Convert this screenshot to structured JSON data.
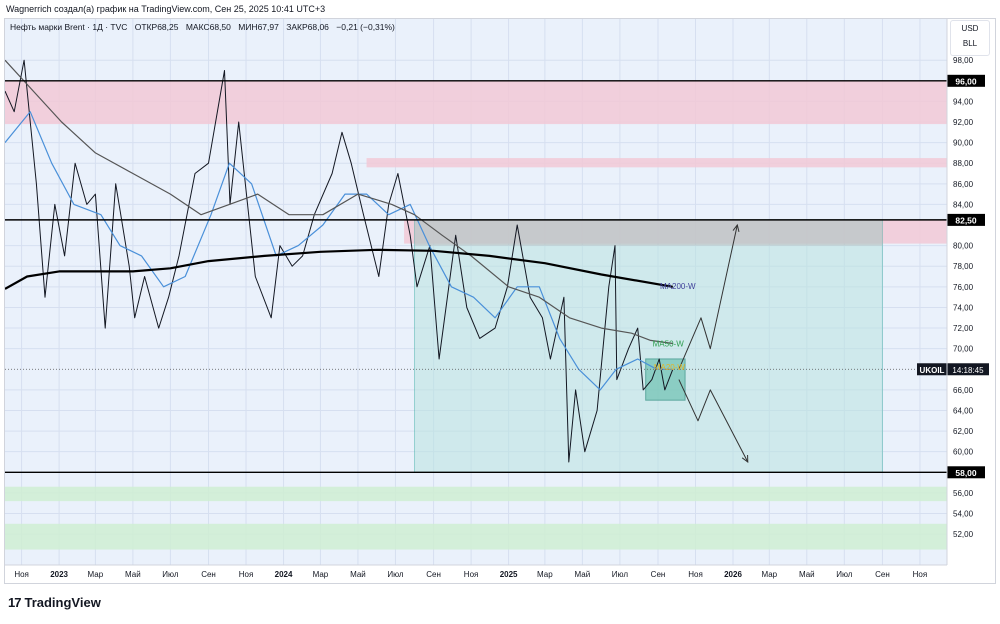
{
  "header": {
    "caption": "Wagnerrich создал(а) график на TradingView.com, Сен 25, 2025 10:41 UTC+3"
  },
  "legend": {
    "symbol": "Нефть марки Brent · 1Д · TVC",
    "open": "ОТКР68,25",
    "high": "МАКС68,50",
    "low": "МИН67,97",
    "close": "ЗАКР68,06",
    "change": "−0,21 (−0,31%)"
  },
  "units": {
    "currency": "USD",
    "unit": "BLL"
  },
  "footer": {
    "logo_text": "TradingView",
    "logo_mark": "17"
  },
  "colors": {
    "background": "#eaf1fb",
    "grid": "#d6dff0",
    "price": "#131722",
    "ma_short": "#4a90d9",
    "ma50": "#555555",
    "ma200": "#000000",
    "red_zone": "#f2c9d6",
    "green_zone": "#cfeed2",
    "teal_box": "#b9e3e0",
    "teal_border": "#4db6ac",
    "label_ma200": "#3f3f9a",
    "label_ma50": "#2e9e4f",
    "label_ma20": "#e6b422"
  },
  "chart_data": {
    "type": "line",
    "title": "",
    "xlabel": "",
    "ylabel": "",
    "grid": true,
    "ylim": [
      49,
      102
    ],
    "x_range": [
      "2022-10-05",
      "2026-12-15"
    ],
    "x_ticks": [
      {
        "date": "2022-11-01",
        "label": "Ноя",
        "bold": false
      },
      {
        "date": "2023-01-01",
        "label": "2023",
        "bold": true
      },
      {
        "date": "2023-03-01",
        "label": "Мар",
        "bold": false
      },
      {
        "date": "2023-05-01",
        "label": "Май",
        "bold": false
      },
      {
        "date": "2023-07-01",
        "label": "Июл",
        "bold": false
      },
      {
        "date": "2023-09-01",
        "label": "Сен",
        "bold": false
      },
      {
        "date": "2023-11-01",
        "label": "Ноя",
        "bold": false
      },
      {
        "date": "2024-01-01",
        "label": "2024",
        "bold": true
      },
      {
        "date": "2024-03-01",
        "label": "Мар",
        "bold": false
      },
      {
        "date": "2024-05-01",
        "label": "Май",
        "bold": false
      },
      {
        "date": "2024-07-01",
        "label": "Июл",
        "bold": false
      },
      {
        "date": "2024-09-01",
        "label": "Сен",
        "bold": false
      },
      {
        "date": "2024-11-01",
        "label": "Ноя",
        "bold": false
      },
      {
        "date": "2025-01-01",
        "label": "2025",
        "bold": true
      },
      {
        "date": "2025-03-01",
        "label": "Мар",
        "bold": false
      },
      {
        "date": "2025-05-01",
        "label": "Май",
        "bold": false
      },
      {
        "date": "2025-07-01",
        "label": "Июл",
        "bold": false
      },
      {
        "date": "2025-09-01",
        "label": "Сен",
        "bold": false
      },
      {
        "date": "2025-11-01",
        "label": "Ноя",
        "bold": false
      },
      {
        "date": "2026-01-01",
        "label": "2026",
        "bold": true
      },
      {
        "date": "2026-03-01",
        "label": "Мар",
        "bold": false
      },
      {
        "date": "2026-05-01",
        "label": "Май",
        "bold": false
      },
      {
        "date": "2026-07-01",
        "label": "Июл",
        "bold": false
      },
      {
        "date": "2026-09-01",
        "label": "Сен",
        "bold": false
      },
      {
        "date": "2026-11-01",
        "label": "Ноя",
        "bold": false
      }
    ],
    "y_ticks": [
      "98,00",
      "94,00",
      "92,00",
      "90,00",
      "88,00",
      "86,00",
      "84,00",
      "80,00",
      "78,00",
      "76,00",
      "74,00",
      "72,00",
      "70,00",
      "66,00",
      "64,00",
      "62,00",
      "60,00",
      "56,00",
      "54,00",
      "52,00"
    ],
    "y_tick_values": [
      98,
      94,
      92,
      90,
      88,
      86,
      84,
      80,
      78,
      76,
      74,
      72,
      70,
      66,
      64,
      62,
      60,
      56,
      54,
      52
    ],
    "levels": [
      {
        "value": 96,
        "label": "96,00"
      },
      {
        "value": 82.5,
        "label": "82,50"
      },
      {
        "value": 58,
        "label": "58,00"
      }
    ],
    "current": {
      "value": 68,
      "symbol": "UKOIL",
      "time": "14:18:45"
    },
    "zones": [
      {
        "kind": "red",
        "x0": "2022-10-05",
        "x1": "2026-12-15",
        "y0": 91.8,
        "y1": 96
      },
      {
        "kind": "red",
        "x0": "2024-05-15",
        "x1": "2026-12-15",
        "y0": 87.6,
        "y1": 88.5
      },
      {
        "kind": "red",
        "x0": "2024-07-15",
        "x1": "2026-12-15",
        "y0": 80.2,
        "y1": 82.5
      },
      {
        "kind": "green",
        "x0": "2022-10-05",
        "x1": "2026-12-15",
        "y0": 55.2,
        "y1": 56.6
      },
      {
        "kind": "green",
        "x0": "2022-10-05",
        "x1": "2026-12-15",
        "y0": 50.5,
        "y1": 53
      }
    ],
    "teal_box": {
      "x0": "2024-08-01",
      "x1": "2026-09-01",
      "y0": 58,
      "y1": 82.5
    },
    "gray_box": {
      "x0": "2024-08-01",
      "x1": "2026-09-01",
      "y0": 80,
      "y1": 82.5
    },
    "small_box": {
      "x0": "2025-08-12",
      "x1": "2025-10-15",
      "y0": 65,
      "y1": 69
    },
    "series": [
      {
        "role": "price",
        "points": [
          [
            "2022-10-05",
            95
          ],
          [
            "2022-10-20",
            93
          ],
          [
            "2022-11-05",
            98
          ],
          [
            "2022-11-25",
            86
          ],
          [
            "2022-12-09",
            75
          ],
          [
            "2022-12-25",
            84
          ],
          [
            "2023-01-10",
            79
          ],
          [
            "2023-01-27",
            88
          ],
          [
            "2023-02-15",
            84
          ],
          [
            "2023-03-01",
            85
          ],
          [
            "2023-03-17",
            72
          ],
          [
            "2023-04-03",
            86
          ],
          [
            "2023-04-25",
            78
          ],
          [
            "2023-05-04",
            73
          ],
          [
            "2023-05-20",
            77
          ],
          [
            "2023-06-12",
            72
          ],
          [
            "2023-06-28",
            75
          ],
          [
            "2023-07-15",
            79
          ],
          [
            "2023-08-10",
            87
          ],
          [
            "2023-09-01",
            88
          ],
          [
            "2023-09-27",
            97
          ],
          [
            "2023-10-06",
            84
          ],
          [
            "2023-10-20",
            92
          ],
          [
            "2023-11-16",
            77
          ],
          [
            "2023-12-12",
            73
          ],
          [
            "2023-12-26",
            80
          ],
          [
            "2024-01-15",
            78
          ],
          [
            "2024-02-01",
            79
          ],
          [
            "2024-02-20",
            83
          ],
          [
            "2024-03-20",
            87
          ],
          [
            "2024-04-05",
            91
          ],
          [
            "2024-04-20",
            88
          ],
          [
            "2024-05-10",
            83
          ],
          [
            "2024-06-04",
            77
          ],
          [
            "2024-06-20",
            84
          ],
          [
            "2024-07-05",
            87
          ],
          [
            "2024-07-25",
            81
          ],
          [
            "2024-08-05",
            76
          ],
          [
            "2024-08-26",
            80
          ],
          [
            "2024-09-10",
            69
          ],
          [
            "2024-10-07",
            81
          ],
          [
            "2024-10-25",
            74
          ],
          [
            "2024-11-15",
            71
          ],
          [
            "2024-12-10",
            72
          ],
          [
            "2024-12-30",
            76
          ],
          [
            "2025-01-15",
            82
          ],
          [
            "2025-02-05",
            75
          ],
          [
            "2025-02-25",
            73
          ],
          [
            "2025-03-10",
            69
          ],
          [
            "2025-04-01",
            75
          ],
          [
            "2025-04-09",
            59
          ],
          [
            "2025-04-20",
            66
          ],
          [
            "2025-05-05",
            60
          ],
          [
            "2025-05-25",
            64
          ],
          [
            "2025-06-13",
            76
          ],
          [
            "2025-06-23",
            80
          ],
          [
            "2025-06-26",
            67
          ],
          [
            "2025-07-15",
            70
          ],
          [
            "2025-07-30",
            72
          ],
          [
            "2025-08-08",
            66
          ],
          [
            "2025-08-22",
            67
          ],
          [
            "2025-09-03",
            69
          ],
          [
            "2025-09-12",
            66
          ],
          [
            "2025-09-25",
            68
          ]
        ]
      },
      {
        "role": "ma_short",
        "points": [
          [
            "2022-10-05",
            90
          ],
          [
            "2022-11-15",
            93
          ],
          [
            "2022-12-20",
            88
          ],
          [
            "2023-01-25",
            84
          ],
          [
            "2023-03-10",
            83
          ],
          [
            "2023-04-10",
            80
          ],
          [
            "2023-05-15",
            79
          ],
          [
            "2023-06-20",
            76
          ],
          [
            "2023-07-25",
            77
          ],
          [
            "2023-09-05",
            83
          ],
          [
            "2023-10-05",
            88
          ],
          [
            "2023-11-10",
            86
          ],
          [
            "2023-12-20",
            79
          ],
          [
            "2024-01-25",
            80
          ],
          [
            "2024-03-05",
            82
          ],
          [
            "2024-04-10",
            85
          ],
          [
            "2024-05-15",
            85
          ],
          [
            "2024-06-20",
            83
          ],
          [
            "2024-07-25",
            84
          ],
          [
            "2024-08-25",
            80
          ],
          [
            "2024-09-30",
            76
          ],
          [
            "2024-11-05",
            75
          ],
          [
            "2024-12-10",
            73
          ],
          [
            "2025-01-15",
            76
          ],
          [
            "2025-02-20",
            76
          ],
          [
            "2025-03-25",
            71
          ],
          [
            "2025-04-25",
            68
          ],
          [
            "2025-05-30",
            66
          ],
          [
            "2025-06-25",
            68
          ],
          [
            "2025-07-30",
            69
          ],
          [
            "2025-08-30",
            68
          ],
          [
            "2025-09-25",
            68
          ]
        ]
      },
      {
        "role": "ma50",
        "points": [
          [
            "2022-10-05",
            98
          ],
          [
            "2022-11-20",
            95
          ],
          [
            "2023-01-05",
            92
          ],
          [
            "2023-03-01",
            89
          ],
          [
            "2023-05-01",
            87
          ],
          [
            "2023-07-01",
            85
          ],
          [
            "2023-08-20",
            83
          ],
          [
            "2023-10-05",
            84
          ],
          [
            "2023-11-20",
            85
          ],
          [
            "2024-01-10",
            83
          ],
          [
            "2024-03-05",
            83
          ],
          [
            "2024-05-01",
            85
          ],
          [
            "2024-06-25",
            84
          ],
          [
            "2024-08-01",
            83
          ],
          [
            "2024-09-15",
            81
          ],
          [
            "2024-11-01",
            79
          ],
          [
            "2025-01-01",
            76
          ],
          [
            "2025-02-20",
            75
          ],
          [
            "2025-04-10",
            73
          ],
          [
            "2025-06-01",
            72
          ],
          [
            "2025-07-20",
            71.5
          ],
          [
            "2025-08-20",
            70.8
          ],
          [
            "2025-09-25",
            70.5
          ]
        ]
      },
      {
        "role": "ma200",
        "points": [
          [
            "2022-10-05",
            75.8
          ],
          [
            "2022-11-10",
            77
          ],
          [
            "2023-01-01",
            77.5
          ],
          [
            "2023-05-01",
            77.5
          ],
          [
            "2023-07-01",
            77.8
          ],
          [
            "2023-09-01",
            78.5
          ],
          [
            "2023-12-01",
            79
          ],
          [
            "2024-03-01",
            79.4
          ],
          [
            "2024-06-01",
            79.6
          ],
          [
            "2024-09-01",
            79.5
          ],
          [
            "2024-12-01",
            79
          ],
          [
            "2025-03-01",
            78.3
          ],
          [
            "2025-06-01",
            77.2
          ],
          [
            "2025-09-25",
            76
          ]
        ]
      },
      {
        "role": "projection_up",
        "points": [
          [
            "2025-10-05",
            68
          ],
          [
            "2025-11-10",
            73
          ],
          [
            "2025-11-25",
            70
          ],
          [
            "2026-01-08",
            82
          ]
        ]
      },
      {
        "role": "projection_down",
        "points": [
          [
            "2025-10-05",
            67
          ],
          [
            "2025-11-05",
            63
          ],
          [
            "2025-11-25",
            66
          ],
          [
            "2026-01-25",
            59
          ]
        ]
      }
    ],
    "annotations": [
      {
        "text": "MA200-W",
        "date": "2025-09-01",
        "value": 76.1
      },
      {
        "text": "MA50-W",
        "date": "2025-08-20",
        "value": 70.5
      },
      {
        "text": "MA20-W",
        "date": "2025-08-22",
        "value": 68.2
      }
    ]
  }
}
